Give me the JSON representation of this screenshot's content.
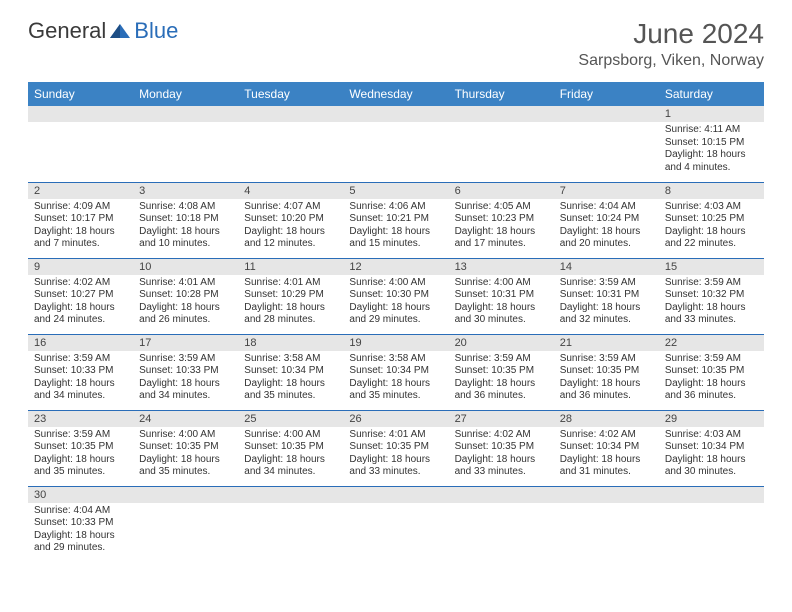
{
  "brand": {
    "part1": "General",
    "part2": "Blue"
  },
  "title": "June 2024",
  "location": "Sarpsborg, Viken, Norway",
  "colors": {
    "header_bg": "#3b82c4",
    "header_text": "#ffffff",
    "border": "#2a6db8",
    "dayband": "#e6e6e6",
    "brand_blue": "#2a6db8",
    "text": "#333333"
  },
  "weekdays": [
    "Sunday",
    "Monday",
    "Tuesday",
    "Wednesday",
    "Thursday",
    "Friday",
    "Saturday"
  ],
  "grid": [
    [
      {
        "empty": true
      },
      {
        "empty": true
      },
      {
        "empty": true
      },
      {
        "empty": true
      },
      {
        "empty": true
      },
      {
        "empty": true
      },
      {
        "n": "1",
        "sr": "Sunrise: 4:11 AM",
        "ss": "Sunset: 10:15 PM",
        "dl": "Daylight: 18 hours and 4 minutes."
      }
    ],
    [
      {
        "n": "2",
        "sr": "Sunrise: 4:09 AM",
        "ss": "Sunset: 10:17 PM",
        "dl": "Daylight: 18 hours and 7 minutes."
      },
      {
        "n": "3",
        "sr": "Sunrise: 4:08 AM",
        "ss": "Sunset: 10:18 PM",
        "dl": "Daylight: 18 hours and 10 minutes."
      },
      {
        "n": "4",
        "sr": "Sunrise: 4:07 AM",
        "ss": "Sunset: 10:20 PM",
        "dl": "Daylight: 18 hours and 12 minutes."
      },
      {
        "n": "5",
        "sr": "Sunrise: 4:06 AM",
        "ss": "Sunset: 10:21 PM",
        "dl": "Daylight: 18 hours and 15 minutes."
      },
      {
        "n": "6",
        "sr": "Sunrise: 4:05 AM",
        "ss": "Sunset: 10:23 PM",
        "dl": "Daylight: 18 hours and 17 minutes."
      },
      {
        "n": "7",
        "sr": "Sunrise: 4:04 AM",
        "ss": "Sunset: 10:24 PM",
        "dl": "Daylight: 18 hours and 20 minutes."
      },
      {
        "n": "8",
        "sr": "Sunrise: 4:03 AM",
        "ss": "Sunset: 10:25 PM",
        "dl": "Daylight: 18 hours and 22 minutes."
      }
    ],
    [
      {
        "n": "9",
        "sr": "Sunrise: 4:02 AM",
        "ss": "Sunset: 10:27 PM",
        "dl": "Daylight: 18 hours and 24 minutes."
      },
      {
        "n": "10",
        "sr": "Sunrise: 4:01 AM",
        "ss": "Sunset: 10:28 PM",
        "dl": "Daylight: 18 hours and 26 minutes."
      },
      {
        "n": "11",
        "sr": "Sunrise: 4:01 AM",
        "ss": "Sunset: 10:29 PM",
        "dl": "Daylight: 18 hours and 28 minutes."
      },
      {
        "n": "12",
        "sr": "Sunrise: 4:00 AM",
        "ss": "Sunset: 10:30 PM",
        "dl": "Daylight: 18 hours and 29 minutes."
      },
      {
        "n": "13",
        "sr": "Sunrise: 4:00 AM",
        "ss": "Sunset: 10:31 PM",
        "dl": "Daylight: 18 hours and 30 minutes."
      },
      {
        "n": "14",
        "sr": "Sunrise: 3:59 AM",
        "ss": "Sunset: 10:31 PM",
        "dl": "Daylight: 18 hours and 32 minutes."
      },
      {
        "n": "15",
        "sr": "Sunrise: 3:59 AM",
        "ss": "Sunset: 10:32 PM",
        "dl": "Daylight: 18 hours and 33 minutes."
      }
    ],
    [
      {
        "n": "16",
        "sr": "Sunrise: 3:59 AM",
        "ss": "Sunset: 10:33 PM",
        "dl": "Daylight: 18 hours and 34 minutes."
      },
      {
        "n": "17",
        "sr": "Sunrise: 3:59 AM",
        "ss": "Sunset: 10:33 PM",
        "dl": "Daylight: 18 hours and 34 minutes."
      },
      {
        "n": "18",
        "sr": "Sunrise: 3:58 AM",
        "ss": "Sunset: 10:34 PM",
        "dl": "Daylight: 18 hours and 35 minutes."
      },
      {
        "n": "19",
        "sr": "Sunrise: 3:58 AM",
        "ss": "Sunset: 10:34 PM",
        "dl": "Daylight: 18 hours and 35 minutes."
      },
      {
        "n": "20",
        "sr": "Sunrise: 3:59 AM",
        "ss": "Sunset: 10:35 PM",
        "dl": "Daylight: 18 hours and 36 minutes."
      },
      {
        "n": "21",
        "sr": "Sunrise: 3:59 AM",
        "ss": "Sunset: 10:35 PM",
        "dl": "Daylight: 18 hours and 36 minutes."
      },
      {
        "n": "22",
        "sr": "Sunrise: 3:59 AM",
        "ss": "Sunset: 10:35 PM",
        "dl": "Daylight: 18 hours and 36 minutes."
      }
    ],
    [
      {
        "n": "23",
        "sr": "Sunrise: 3:59 AM",
        "ss": "Sunset: 10:35 PM",
        "dl": "Daylight: 18 hours and 35 minutes."
      },
      {
        "n": "24",
        "sr": "Sunrise: 4:00 AM",
        "ss": "Sunset: 10:35 PM",
        "dl": "Daylight: 18 hours and 35 minutes."
      },
      {
        "n": "25",
        "sr": "Sunrise: 4:00 AM",
        "ss": "Sunset: 10:35 PM",
        "dl": "Daylight: 18 hours and 34 minutes."
      },
      {
        "n": "26",
        "sr": "Sunrise: 4:01 AM",
        "ss": "Sunset: 10:35 PM",
        "dl": "Daylight: 18 hours and 33 minutes."
      },
      {
        "n": "27",
        "sr": "Sunrise: 4:02 AM",
        "ss": "Sunset: 10:35 PM",
        "dl": "Daylight: 18 hours and 33 minutes."
      },
      {
        "n": "28",
        "sr": "Sunrise: 4:02 AM",
        "ss": "Sunset: 10:34 PM",
        "dl": "Daylight: 18 hours and 31 minutes."
      },
      {
        "n": "29",
        "sr": "Sunrise: 4:03 AM",
        "ss": "Sunset: 10:34 PM",
        "dl": "Daylight: 18 hours and 30 minutes."
      }
    ],
    [
      {
        "n": "30",
        "sr": "Sunrise: 4:04 AM",
        "ss": "Sunset: 10:33 PM",
        "dl": "Daylight: 18 hours and 29 minutes."
      },
      {
        "empty": true
      },
      {
        "empty": true
      },
      {
        "empty": true
      },
      {
        "empty": true
      },
      {
        "empty": true
      },
      {
        "empty": true
      }
    ]
  ]
}
